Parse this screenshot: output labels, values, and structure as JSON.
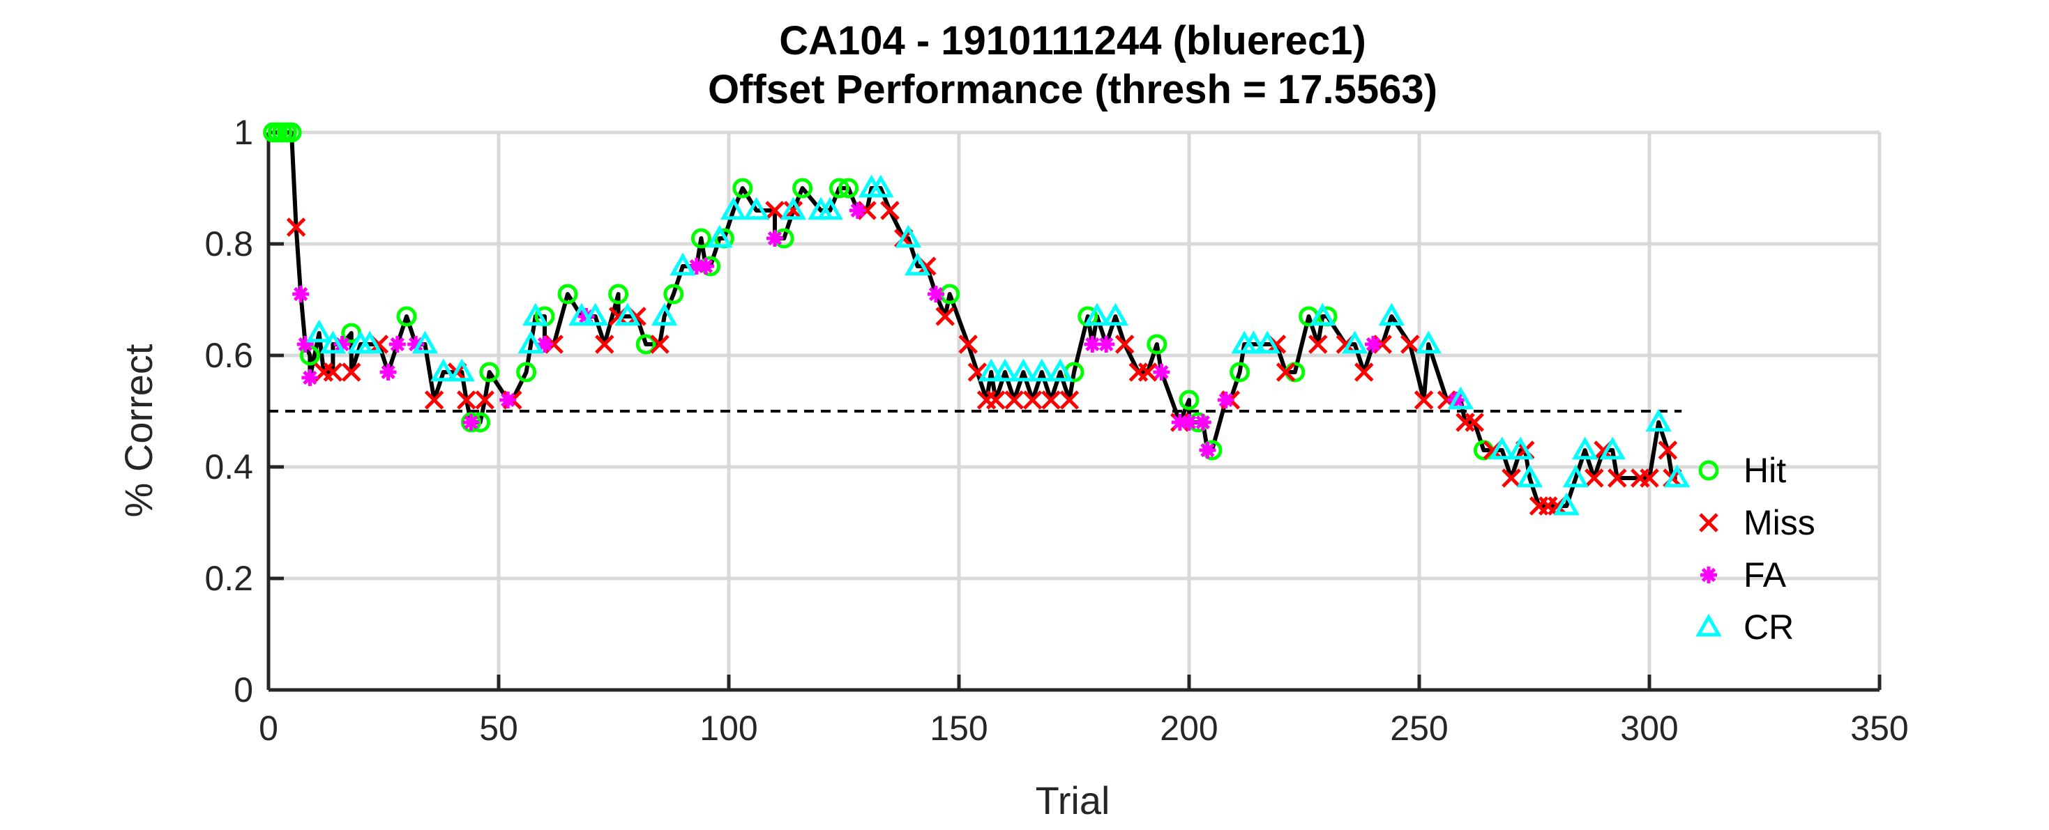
{
  "chart_data": {
    "type": "line",
    "title": "CA104 - 1910111244 (bluerec1)",
    "subtitle": "Offset Performance (thresh = 17.5563)",
    "xlabel": "Trial",
    "ylabel": "% Correct",
    "xlim": [
      0,
      350
    ],
    "ylim": [
      0,
      1
    ],
    "xticks": [
      0,
      50,
      100,
      150,
      200,
      250,
      300,
      350
    ],
    "yticks": [
      0,
      0.2,
      0.4,
      0.6,
      0.8,
      1
    ],
    "xtick_labels": [
      "0",
      "50",
      "100",
      "150",
      "200",
      "250",
      "300",
      "350"
    ],
    "ytick_labels": [
      "0",
      "0.2",
      "0.4",
      "0.6",
      "0.8",
      "1"
    ],
    "grid": true,
    "legend_position": "right",
    "reference_line": {
      "y": 0.5,
      "x_range": [
        0,
        307
      ],
      "style": "dashed",
      "color": "#000000"
    },
    "line_color": "#000000",
    "series": [
      {
        "name": "Hit",
        "marker": "circle",
        "color": "#00ff00",
        "points": [
          [
            1,
            1
          ],
          [
            2,
            1
          ],
          [
            3,
            1
          ],
          [
            4,
            1
          ],
          [
            5,
            1
          ],
          [
            9,
            0.6
          ],
          [
            18,
            0.64
          ],
          [
            30,
            0.67
          ],
          [
            44,
            0.48
          ],
          [
            46,
            0.48
          ],
          [
            48,
            0.57
          ],
          [
            56,
            0.57
          ],
          [
            60,
            0.67
          ],
          [
            65,
            0.71
          ],
          [
            76,
            0.71
          ],
          [
            82,
            0.62
          ],
          [
            88,
            0.71
          ],
          [
            94,
            0.81
          ],
          [
            96,
            0.76
          ],
          [
            99,
            0.81
          ],
          [
            103,
            0.9
          ],
          [
            112,
            0.81
          ],
          [
            116,
            0.9
          ],
          [
            124,
            0.9
          ],
          [
            126,
            0.9
          ],
          [
            148,
            0.71
          ],
          [
            175,
            0.57
          ],
          [
            178,
            0.67
          ],
          [
            193,
            0.62
          ],
          [
            200,
            0.52
          ],
          [
            202,
            0.48
          ],
          [
            205,
            0.43
          ],
          [
            211,
            0.57
          ],
          [
            223,
            0.57
          ],
          [
            226,
            0.67
          ],
          [
            230,
            0.67
          ],
          [
            264,
            0.43
          ]
        ]
      },
      {
        "name": "Miss",
        "marker": "x",
        "color": "#ff0000",
        "points": [
          [
            6,
            0.83
          ],
          [
            12,
            0.57
          ],
          [
            14,
            0.57
          ],
          [
            18,
            0.57
          ],
          [
            24,
            0.62
          ],
          [
            36,
            0.52
          ],
          [
            41,
            0.57
          ],
          [
            43,
            0.52
          ],
          [
            47,
            0.52
          ],
          [
            53,
            0.52
          ],
          [
            62,
            0.62
          ],
          [
            73,
            0.62
          ],
          [
            76,
            0.67
          ],
          [
            80,
            0.67
          ],
          [
            85,
            0.62
          ],
          [
            110,
            0.86
          ],
          [
            114,
            0.86
          ],
          [
            130,
            0.86
          ],
          [
            135,
            0.86
          ],
          [
            138,
            0.81
          ],
          [
            143,
            0.76
          ],
          [
            147,
            0.67
          ],
          [
            152,
            0.62
          ],
          [
            154,
            0.57
          ],
          [
            156,
            0.52
          ],
          [
            158,
            0.52
          ],
          [
            162,
            0.52
          ],
          [
            166,
            0.52
          ],
          [
            170,
            0.52
          ],
          [
            174,
            0.52
          ],
          [
            186,
            0.62
          ],
          [
            189,
            0.57
          ],
          [
            191,
            0.57
          ],
          [
            198,
            0.48
          ],
          [
            209,
            0.52
          ],
          [
            219,
            0.62
          ],
          [
            221,
            0.57
          ],
          [
            228,
            0.62
          ],
          [
            234,
            0.62
          ],
          [
            238,
            0.57
          ],
          [
            242,
            0.62
          ],
          [
            248,
            0.62
          ],
          [
            251,
            0.52
          ],
          [
            256,
            0.52
          ],
          [
            260,
            0.48
          ],
          [
            262,
            0.48
          ],
          [
            266,
            0.43
          ],
          [
            270,
            0.38
          ],
          [
            273,
            0.43
          ],
          [
            276,
            0.33
          ],
          [
            278,
            0.33
          ],
          [
            280,
            0.33
          ],
          [
            288,
            0.38
          ],
          [
            290,
            0.43
          ],
          [
            293,
            0.38
          ],
          [
            298,
            0.38
          ],
          [
            300,
            0.38
          ],
          [
            304,
            0.43
          ],
          [
            305,
            0.38
          ]
        ]
      },
      {
        "name": "FA",
        "marker": "asterisk",
        "color": "#ff00ff",
        "points": [
          [
            7,
            0.71
          ],
          [
            8,
            0.62
          ],
          [
            9,
            0.56
          ],
          [
            16,
            0.62
          ],
          [
            26,
            0.57
          ],
          [
            28,
            0.62
          ],
          [
            32,
            0.62
          ],
          [
            44,
            0.48
          ],
          [
            52,
            0.52
          ],
          [
            60,
            0.62
          ],
          [
            69,
            0.67
          ],
          [
            93,
            0.76
          ],
          [
            95,
            0.76
          ],
          [
            110,
            0.81
          ],
          [
            128,
            0.86
          ],
          [
            145,
            0.71
          ],
          [
            179,
            0.62
          ],
          [
            182,
            0.62
          ],
          [
            194,
            0.57
          ],
          [
            198,
            0.48
          ],
          [
            200,
            0.48
          ],
          [
            203,
            0.48
          ],
          [
            204,
            0.43
          ],
          [
            208,
            0.52
          ],
          [
            240,
            0.62
          ],
          [
            258,
            0.52
          ]
        ]
      },
      {
        "name": "CR",
        "marker": "triangle",
        "color": "#00ffff",
        "points": [
          [
            11,
            0.64
          ],
          [
            14,
            0.62
          ],
          [
            20,
            0.62
          ],
          [
            22,
            0.62
          ],
          [
            34,
            0.62
          ],
          [
            38,
            0.57
          ],
          [
            42,
            0.57
          ],
          [
            57,
            0.62
          ],
          [
            58,
            0.67
          ],
          [
            68,
            0.67
          ],
          [
            71,
            0.67
          ],
          [
            78,
            0.67
          ],
          [
            86,
            0.67
          ],
          [
            90,
            0.76
          ],
          [
            98,
            0.81
          ],
          [
            101,
            0.86
          ],
          [
            106,
            0.86
          ],
          [
            114,
            0.86
          ],
          [
            120,
            0.86
          ],
          [
            122,
            0.86
          ],
          [
            131,
            0.9
          ],
          [
            133,
            0.9
          ],
          [
            139,
            0.81
          ],
          [
            141,
            0.76
          ],
          [
            157,
            0.57
          ],
          [
            160,
            0.57
          ],
          [
            164,
            0.57
          ],
          [
            168,
            0.57
          ],
          [
            172,
            0.57
          ],
          [
            180,
            0.67
          ],
          [
            184,
            0.67
          ],
          [
            212,
            0.62
          ],
          [
            214,
            0.62
          ],
          [
            217,
            0.62
          ],
          [
            229,
            0.67
          ],
          [
            236,
            0.62
          ],
          [
            244,
            0.67
          ],
          [
            252,
            0.62
          ],
          [
            259,
            0.52
          ],
          [
            268,
            0.43
          ],
          [
            272,
            0.43
          ],
          [
            274,
            0.38
          ],
          [
            282,
            0.33
          ],
          [
            284,
            0.38
          ],
          [
            286,
            0.43
          ],
          [
            292,
            0.43
          ],
          [
            302,
            0.48
          ],
          [
            306,
            0.38
          ]
        ]
      }
    ]
  }
}
